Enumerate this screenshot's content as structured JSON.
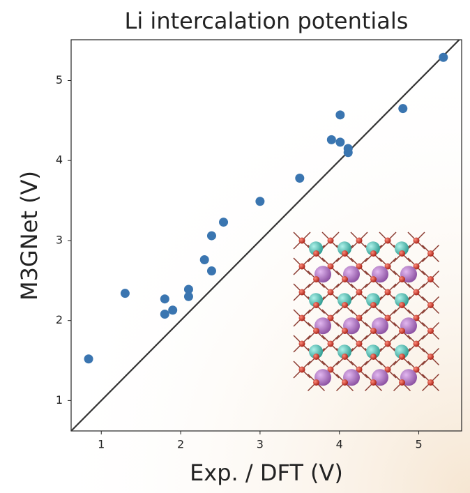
{
  "chart_data": {
    "type": "scatter",
    "title": "Li intercalation potentials",
    "xlabel": "Exp. / DFT (V)",
    "ylabel": "M3GNet (V)",
    "x": [
      0.84,
      1.3,
      1.8,
      1.8,
      1.9,
      2.1,
      2.1,
      2.3,
      2.39,
      2.39,
      2.54,
      3.0,
      3.5,
      3.9,
      4.01,
      4.01,
      4.11,
      4.11,
      4.8,
      5.31
    ],
    "values": [
      1.52,
      2.34,
      2.27,
      2.08,
      2.13,
      2.39,
      2.3,
      2.76,
      3.06,
      2.62,
      3.23,
      3.49,
      3.78,
      4.26,
      4.57,
      4.23,
      4.15,
      4.1,
      4.65,
      5.29
    ],
    "color": "#3a75b0",
    "xlim": [
      0.62,
      5.54
    ],
    "ylim": [
      0.62,
      5.51
    ],
    "xticks": [
      1,
      2,
      3,
      4,
      5
    ],
    "yticks": [
      1,
      2,
      3,
      4,
      5
    ]
  }
}
